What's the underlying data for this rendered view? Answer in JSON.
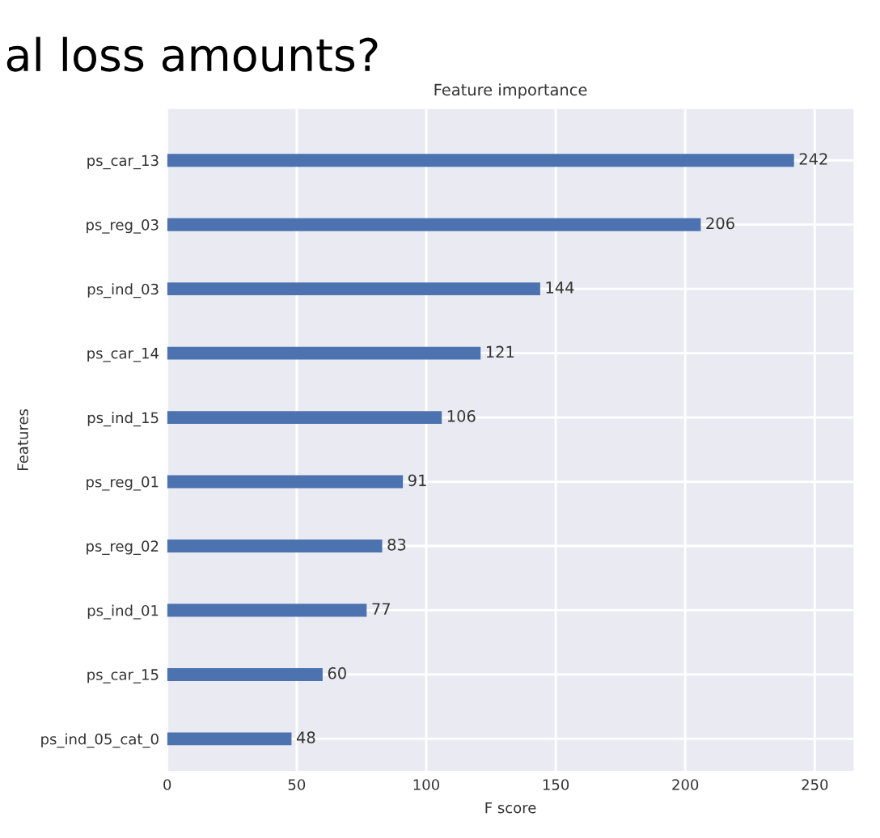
{
  "chart_data": {
    "type": "bar",
    "orientation": "horizontal",
    "title": "Feature importance",
    "xlabel": "F score",
    "ylabel": "Features",
    "categories": [
      "ps_car_13",
      "ps_reg_03",
      "ps_ind_03",
      "ps_car_14",
      "ps_ind_15",
      "ps_reg_01",
      "ps_reg_02",
      "ps_ind_01",
      "ps_car_15",
      "ps_ind_05_cat_0"
    ],
    "values": [
      242,
      206,
      144,
      121,
      106,
      91,
      83,
      77,
      60,
      48
    ],
    "color": "#4c72b0",
    "data_labels": true,
    "grid": true,
    "legend": false,
    "xlim": [
      0,
      265
    ],
    "xticks": [
      0,
      50,
      100,
      150,
      200,
      250
    ],
    "annotations": [
      "al loss amounts?"
    ]
  }
}
